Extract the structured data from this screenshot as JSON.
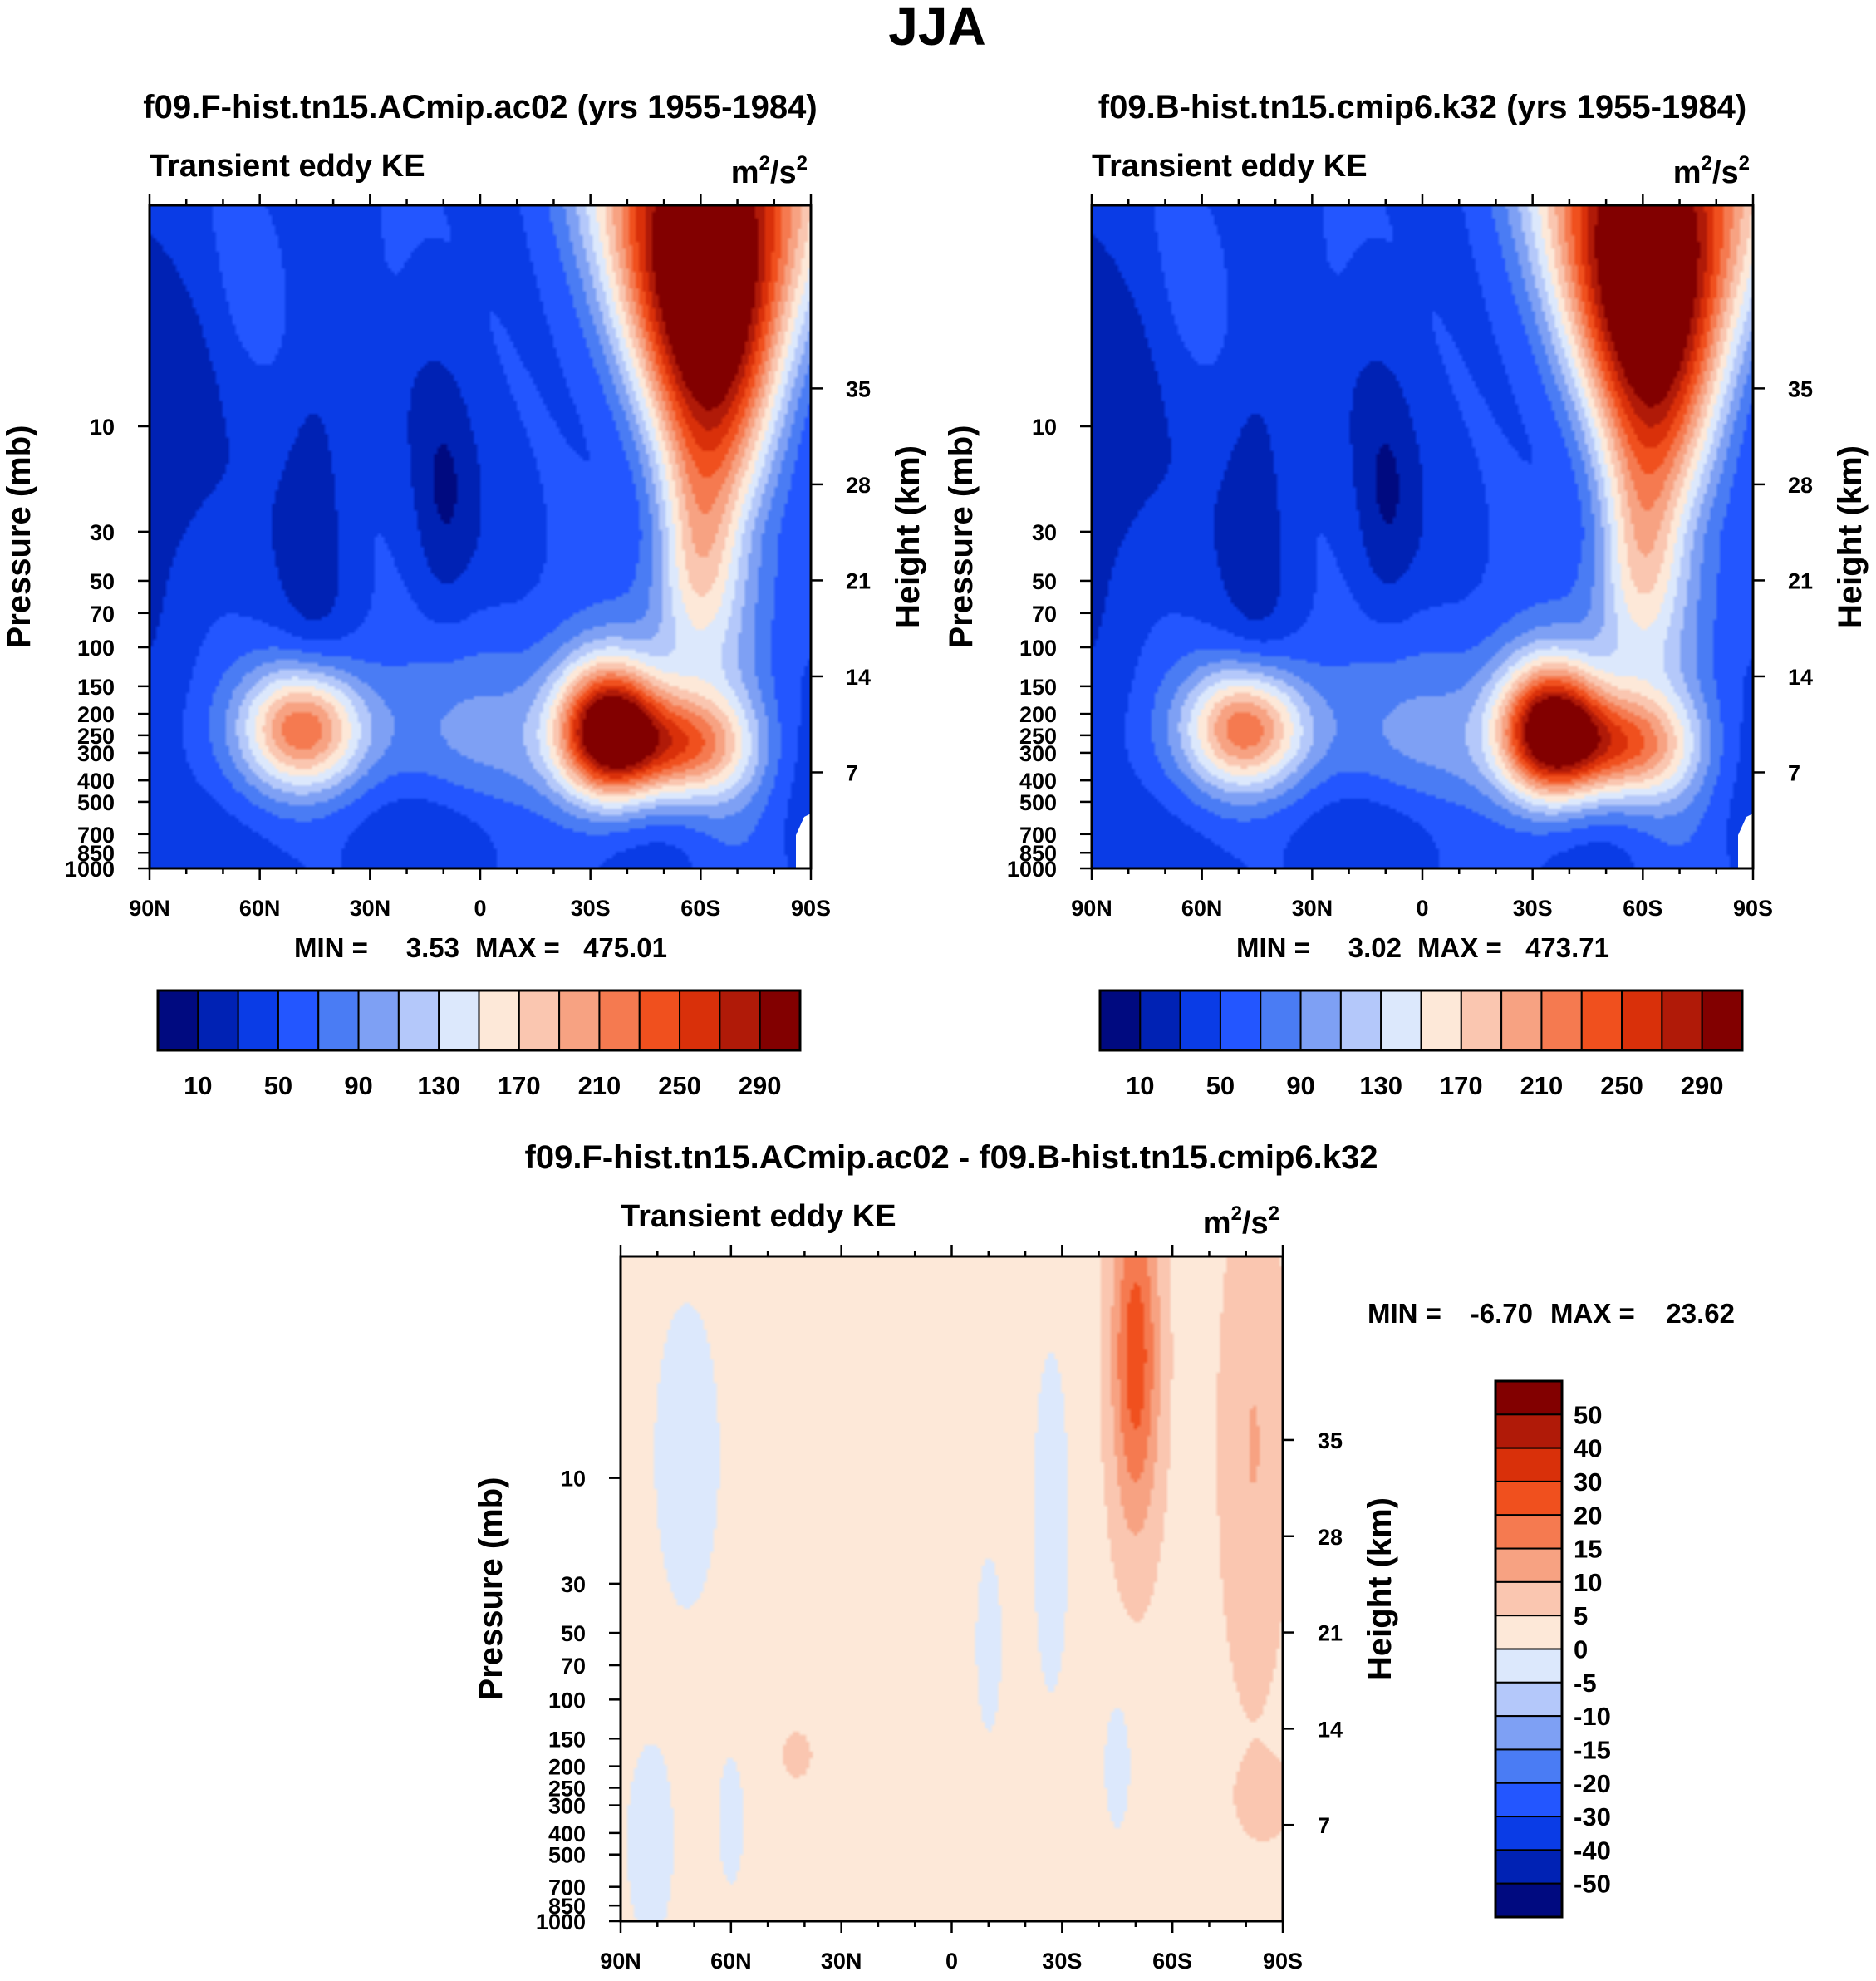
{
  "figure": {
    "main_title": "JJA"
  },
  "chart_data": [
    {
      "type": "heatmap",
      "panel": "top-left",
      "title": "f09.F-hist.tn15.ACmip.ac02 (yrs 1955-1984)",
      "subtitle_left": "Transient eddy KE",
      "units": {
        "base": "m",
        "exp1": "2",
        "mid": "/s",
        "exp2": "2"
      },
      "xlabel": "",
      "ylabel": "Pressure (mb)",
      "y2label": "Height (km)",
      "x_ticks": [
        "90N",
        "60N",
        "30N",
        "0",
        "30S",
        "60S",
        "90S"
      ],
      "y_ticks": [
        "10",
        "30",
        "50",
        "70",
        "100",
        "150",
        "200",
        "250",
        "300",
        "400",
        "500",
        "700",
        "850",
        "1000"
      ],
      "y2_ticks": [
        "35",
        "28",
        "21",
        "14",
        "7"
      ],
      "stats": {
        "min_label": "MIN =",
        "min": "3.53",
        "max_label": "MAX =",
        "max": "475.01"
      },
      "colorbar": {
        "orientation": "horizontal",
        "colors": [
          "#000a80",
          "#0022b4",
          "#0a3ce6",
          "#2356ff",
          "#4a7cf4",
          "#7ea0f4",
          "#b4c8fa",
          "#dce8fc",
          "#fde8d8",
          "#fac6b0",
          "#f7a282",
          "#f57a50",
          "#f0501e",
          "#d9300a",
          "#b01a08",
          "#820000"
        ],
        "labels": [
          "10",
          "50",
          "90",
          "130",
          "170",
          "210",
          "250",
          "290"
        ],
        "levels": [
          10,
          30,
          50,
          70,
          90,
          110,
          130,
          150,
          170,
          190,
          210,
          230,
          250,
          270,
          290
        ]
      },
      "features": [
        {
          "lat": 48,
          "pressure_mb": 230,
          "value": 195,
          "name": "NH jet"
        },
        {
          "lat": -35,
          "pressure_mb": 240,
          "value": 300,
          "name": "SH jet core"
        },
        {
          "lat": -55,
          "pressure_mb": 280,
          "value": 280,
          "name": "SH jet lobe"
        },
        {
          "lat": -55,
          "pressure_mb": 3,
          "value": 300,
          "name": "SH polar night jet"
        }
      ]
    },
    {
      "type": "heatmap",
      "panel": "top-right",
      "title": "f09.B-hist.tn15.cmip6.k32 (yrs 1955-1984)",
      "subtitle_left": "Transient eddy KE",
      "units": {
        "base": "m",
        "exp1": "2",
        "mid": "/s",
        "exp2": "2"
      },
      "xlabel": "",
      "ylabel": "Pressure (mb)",
      "y2label": "Height (km)",
      "x_ticks": [
        "90N",
        "60N",
        "30N",
        "0",
        "30S",
        "60S",
        "90S"
      ],
      "y_ticks": [
        "10",
        "30",
        "50",
        "70",
        "100",
        "150",
        "200",
        "250",
        "300",
        "400",
        "500",
        "700",
        "850",
        "1000"
      ],
      "y2_ticks": [
        "35",
        "28",
        "21",
        "14",
        "7"
      ],
      "stats": {
        "min_label": "MIN =",
        "min": "3.02",
        "max_label": "MAX =",
        "max": "473.71"
      },
      "colorbar": {
        "orientation": "horizontal",
        "colors": [
          "#000a80",
          "#0022b4",
          "#0a3ce6",
          "#2356ff",
          "#4a7cf4",
          "#7ea0f4",
          "#b4c8fa",
          "#dce8fc",
          "#fde8d8",
          "#fac6b0",
          "#f7a282",
          "#f57a50",
          "#f0501e",
          "#d9300a",
          "#b01a08",
          "#820000"
        ],
        "labels": [
          "10",
          "50",
          "90",
          "130",
          "170",
          "210",
          "250",
          "290"
        ],
        "levels": [
          10,
          30,
          50,
          70,
          90,
          110,
          130,
          150,
          170,
          190,
          210,
          230,
          250,
          270,
          290
        ]
      },
      "features": [
        {
          "lat": 48,
          "pressure_mb": 230,
          "value": 190,
          "name": "NH jet"
        },
        {
          "lat": -35,
          "pressure_mb": 240,
          "value": 295,
          "name": "SH jet core"
        },
        {
          "lat": -55,
          "pressure_mb": 280,
          "value": 275,
          "name": "SH jet lobe"
        },
        {
          "lat": -55,
          "pressure_mb": 3,
          "value": 300,
          "name": "SH polar night jet"
        }
      ]
    },
    {
      "type": "heatmap",
      "panel": "bottom-difference",
      "title": "f09.F-hist.tn15.ACmip.ac02 - f09.B-hist.tn15.cmip6.k32",
      "subtitle_left": "Transient eddy KE",
      "units": {
        "base": "m",
        "exp1": "2",
        "mid": "/s",
        "exp2": "2"
      },
      "xlabel": "",
      "ylabel": "Pressure (mb)",
      "y2label": "Height (km)",
      "x_ticks": [
        "90N",
        "60N",
        "30N",
        "0",
        "30S",
        "60S",
        "90S"
      ],
      "y_ticks": [
        "10",
        "30",
        "50",
        "70",
        "100",
        "150",
        "200",
        "250",
        "300",
        "400",
        "500",
        "700",
        "850",
        "1000"
      ],
      "y2_ticks": [
        "35",
        "28",
        "21",
        "14",
        "7"
      ],
      "stats": {
        "min_label": "MIN =",
        "min": "-6.70",
        "max_label": "MAX =",
        "max": "23.62"
      },
      "colorbar": {
        "orientation": "vertical",
        "colors_top_to_bottom": [
          "#820000",
          "#b01a08",
          "#d9300a",
          "#f0501e",
          "#f57a50",
          "#f7a282",
          "#fac6b0",
          "#fde8d8",
          "#dce8fc",
          "#b4c8fa",
          "#7ea0f4",
          "#4a7cf4",
          "#2356ff",
          "#0a3ce6",
          "#0022b4",
          "#000a80"
        ],
        "labels": [
          "50",
          "40",
          "30",
          "20",
          "15",
          "10",
          "5",
          "0",
          "-5",
          "-10",
          "-15",
          "-20",
          "-30",
          "-40",
          "-50"
        ]
      },
      "features": [
        {
          "lat": -50,
          "pressure_mb": 6,
          "value": 20,
          "name": "positive maximum"
        },
        {
          "lat": -80,
          "pressure_mb": 10,
          "value": 10,
          "name": "polar positive"
        },
        {
          "lat": 75,
          "pressure_mb": 15,
          "value": -3,
          "name": "NH stratosphere negative"
        },
        {
          "lat": -10,
          "pressure_mb": 40,
          "value": -3,
          "name": "subtropical negative"
        },
        {
          "lat": 80,
          "pressure_mb": 450,
          "value": -3,
          "name": "NH surface negative"
        }
      ]
    }
  ]
}
